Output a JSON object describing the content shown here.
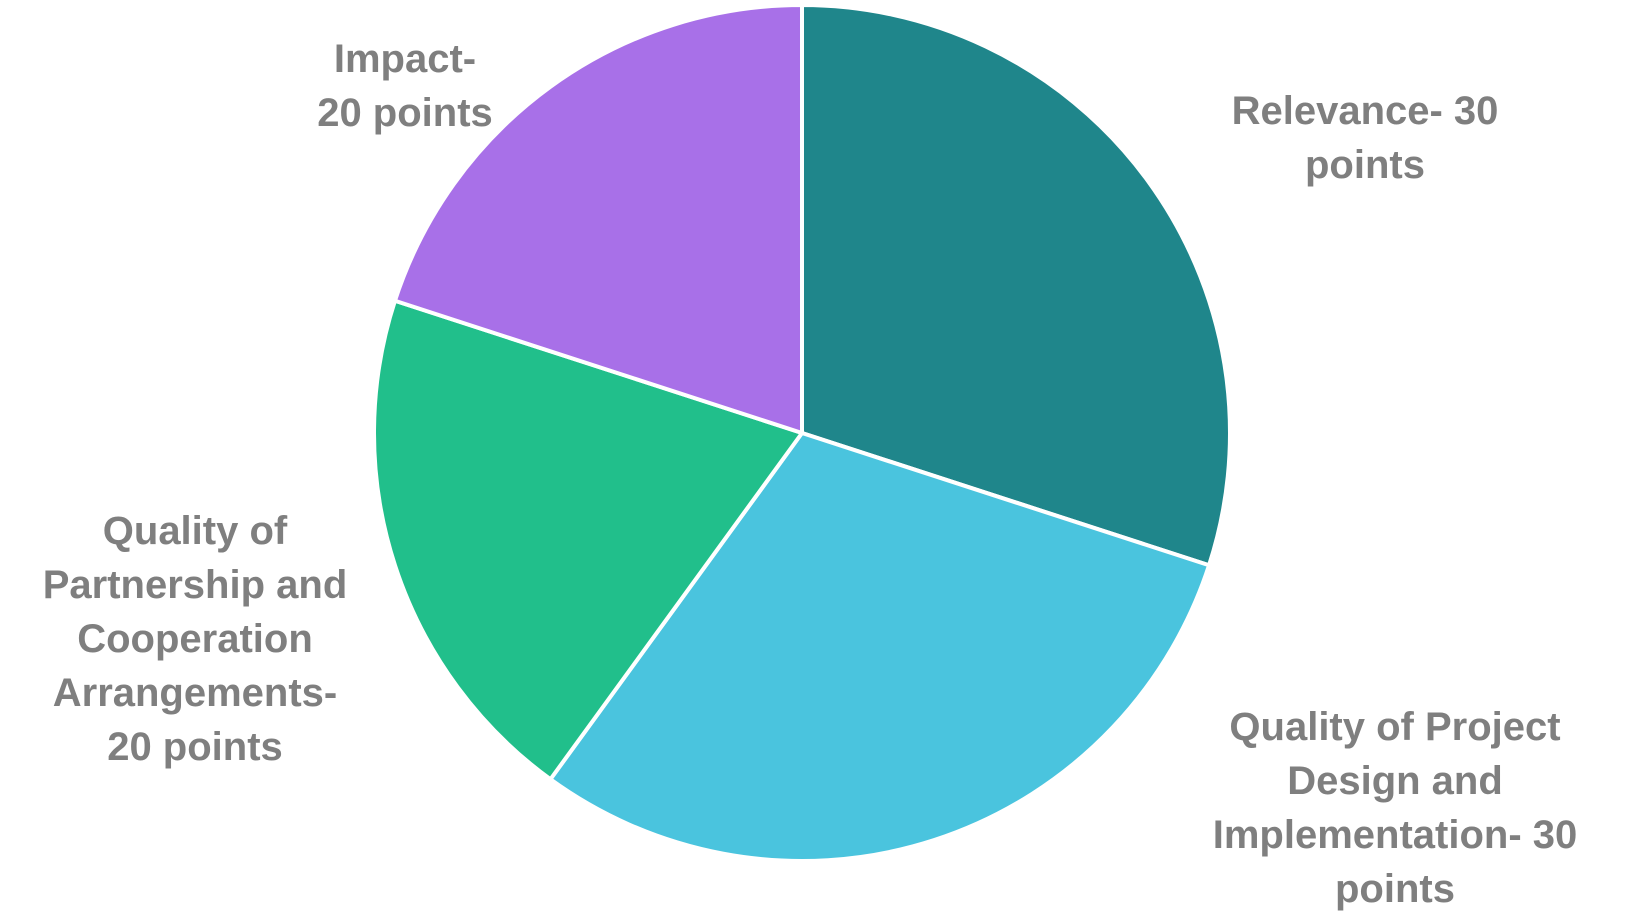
{
  "chart_data": {
    "type": "pie",
    "slices": [
      {
        "label_lines": [
          "Relevance- 30",
          "points"
        ],
        "value": 30,
        "color": "#1f868b"
      },
      {
        "label_lines": [
          "Quality of Project",
          "Design and",
          "Implementation- 30",
          "points"
        ],
        "value": 30,
        "color": "#4ac4de"
      },
      {
        "label_lines": [
          "Quality of",
          "Partnership and",
          "Cooperation",
          "Arrangements-",
          "20 points"
        ],
        "value": 20,
        "color": "#21bf8b"
      },
      {
        "label_lines": [
          "Impact-",
          "20 points"
        ],
        "value": 20,
        "color": "#a870e8"
      }
    ],
    "start_angle_deg": 0,
    "direction": "clockwise",
    "label_color": "#7f7f7f",
    "border_color": "#ffffff"
  }
}
